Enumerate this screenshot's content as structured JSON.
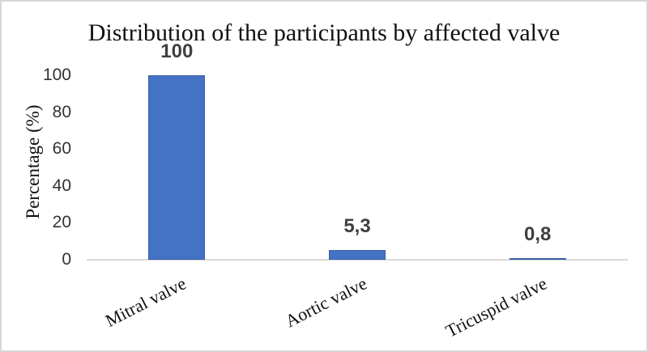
{
  "figure": {
    "background": "#ffffff",
    "frame_color": "#d6d6d6"
  },
  "chart_data": {
    "type": "bar",
    "title": "Distribution of the participants by affected valve",
    "categories": [
      "Mitral valve",
      "Aortic valve",
      "Tricuspid valve"
    ],
    "values": [
      100,
      5.3,
      0.8
    ],
    "data_labels": [
      "100",
      "5,3",
      "0,8"
    ],
    "xlabel": "",
    "ylabel": "Percentage (%)",
    "ylim": [
      0,
      100
    ],
    "yticks": [
      "0",
      "20",
      "40",
      "60",
      "80",
      "100"
    ],
    "grid": false,
    "legend": false,
    "bar_color": "#4472c4",
    "data_label_color": "#404040",
    "tick_label_color": "#333333",
    "text_color": "#111111",
    "axis_line_color": "#d9d9d9"
  }
}
